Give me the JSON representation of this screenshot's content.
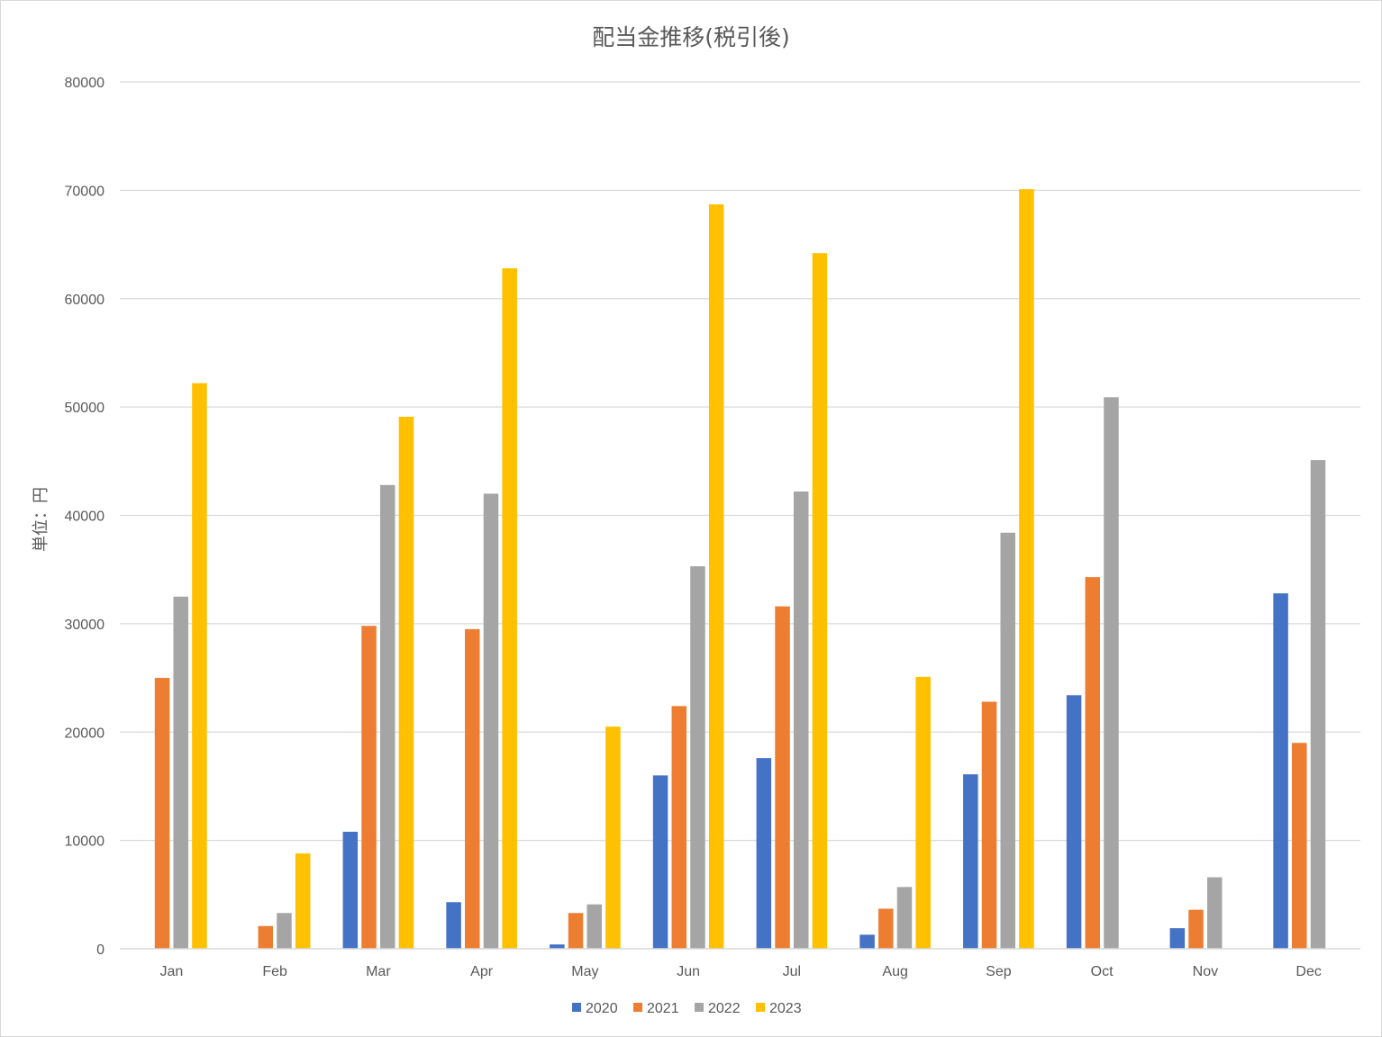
{
  "chart_data": {
    "type": "bar",
    "title": "配当金推移(税引後)",
    "ylabel": "単位：円",
    "xlabel": "",
    "categories": [
      "Jan",
      "Feb",
      "Mar",
      "Apr",
      "May",
      "Jun",
      "Jul",
      "Aug",
      "Sep",
      "Oct",
      "Nov",
      "Dec"
    ],
    "ylim": [
      0,
      80000
    ],
    "yticks": [
      0,
      10000,
      20000,
      30000,
      40000,
      50000,
      60000,
      70000,
      80000
    ],
    "grid": true,
    "legend_position": "bottom",
    "series": [
      {
        "name": "2020",
        "color": "#4472C4",
        "values": [
          0,
          0,
          10800,
          4300,
          400,
          16000,
          17600,
          1300,
          16100,
          23400,
          1900,
          32800
        ]
      },
      {
        "name": "2021",
        "color": "#ED7D31",
        "values": [
          25000,
          2100,
          29800,
          29500,
          3300,
          22400,
          31600,
          3700,
          22800,
          34300,
          3600,
          19000
        ]
      },
      {
        "name": "2022",
        "color": "#A5A5A5",
        "values": [
          32500,
          3300,
          42800,
          42000,
          4100,
          35300,
          42200,
          5700,
          38400,
          50900,
          6600,
          45100
        ]
      },
      {
        "name": "2023",
        "color": "#FFC000",
        "values": [
          52200,
          8800,
          49100,
          62800,
          20500,
          68700,
          64200,
          25100,
          70100,
          0,
          0,
          0
        ]
      }
    ]
  }
}
